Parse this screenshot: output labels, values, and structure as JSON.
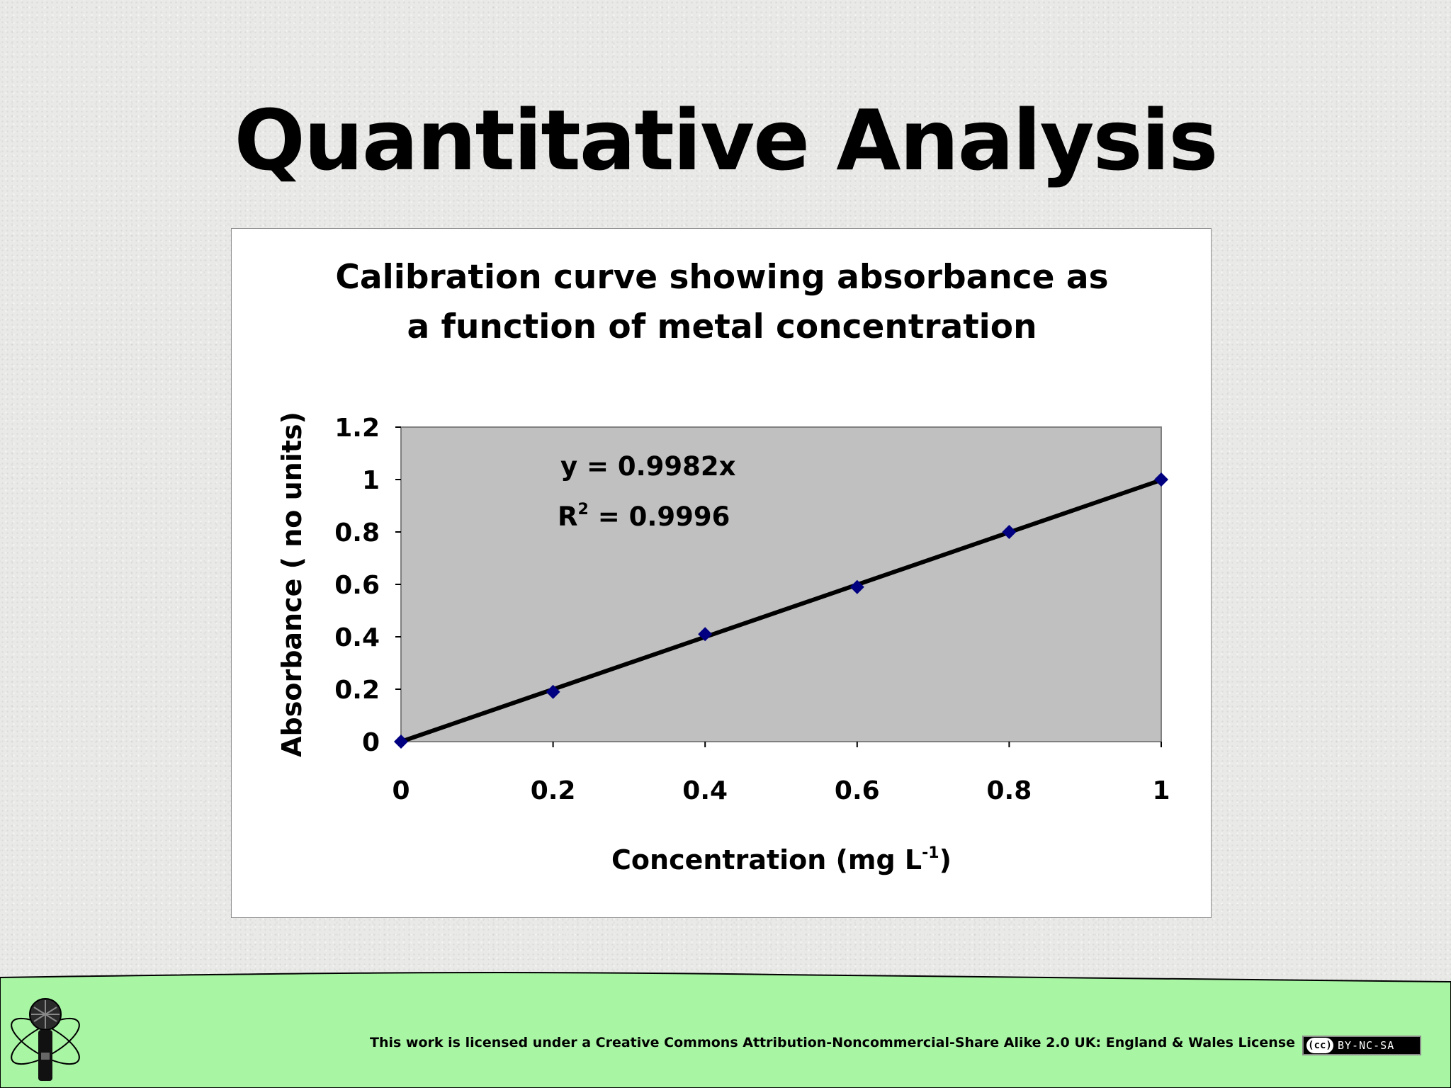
{
  "slide": {
    "title": "Quantitative Analysis"
  },
  "chart_data": {
    "type": "scatter",
    "title_lines": [
      "Calibration curve showing absorbance as",
      "a function of metal concentration"
    ],
    "xlabel": "Concentration (mg L",
    "xlabel_superscript": "-1",
    "xlabel_suffix": ")",
    "ylabel": "Absorbance ( no units)",
    "xlim": [
      0,
      1
    ],
    "ylim": [
      0,
      1.2
    ],
    "x_ticks": [
      "0",
      "0.2",
      "0.4",
      "0.6",
      "0.8",
      "1"
    ],
    "y_ticks": [
      "0",
      "0.2",
      "0.4",
      "0.6",
      "0.8",
      "1",
      "1.2"
    ],
    "series": [
      {
        "x": [
          0,
          0.2,
          0.4,
          0.6,
          0.8,
          1.0
        ],
        "y": [
          0,
          0.19,
          0.41,
          0.59,
          0.8,
          1.0
        ],
        "marker": "diamond",
        "color": "#000080"
      }
    ],
    "trendline": {
      "type": "linear",
      "slope": 0.9982,
      "intercept": 0,
      "color": "#000000"
    },
    "equation_label": "y = 0.9982x",
    "r_squared_label": "R",
    "r_squared_superscript": "2",
    "r_squared_value": " = 0.9996",
    "plot_background": "#c0c0c0",
    "grid": false,
    "legend": "none"
  },
  "footer": {
    "license_text": "This work is licensed under a Creative Commons Attribution-Noncommercial-Share Alike 2.0 UK: England & Wales License",
    "badge_cc": "(cc)",
    "badge_terms": "BY-NC-SA",
    "band_color": "#a8f5a4",
    "logo_icon": "microphone-atom-icon"
  }
}
